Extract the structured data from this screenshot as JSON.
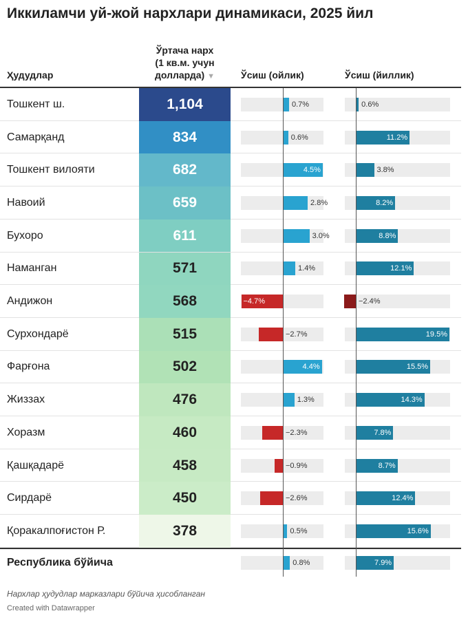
{
  "title": "Иккиламчи уй-жой нархлари динамикаси, 2025 йил",
  "header": {
    "region": "Ҳудудлар",
    "price": [
      "Ўртача нарх",
      "(1 кв.м. учун",
      "долларда)"
    ],
    "sort_icon": "▼",
    "monthly": "Ўсиш (ойлик)",
    "yearly": "Ўсиш (йиллик)"
  },
  "colors": {
    "monthly_pos": "#29a3d0",
    "monthly_neg": "#c62828",
    "yearly_pos": "#1f7fa0",
    "yearly_neg": "#8b1a1a",
    "track": "#ececec"
  },
  "rows": [
    {
      "region": "Тошкент ш.",
      "price": {
        "value": 1104,
        "label": "1,104"
      },
      "color": "#2b4a8c",
      "monthly": {
        "value": 0.7,
        "label": "0.7%"
      },
      "yearly": {
        "value": 0.6,
        "label": "0.6%"
      }
    },
    {
      "region": "Самарқанд",
      "price": 834,
      "color": "#318fc5",
      "monthly": {
        "value": 0.6,
        "label": "0.6%"
      },
      "yearly": {
        "value": 11.2,
        "label": "11.2%"
      }
    },
    {
      "region": "Тошкент вилояти",
      "price": 682,
      "color": "#63b8ca",
      "monthly": {
        "value": 4.5,
        "label": "4.5%"
      },
      "yearly": {
        "value": 3.8,
        "label": "3.8%"
      }
    },
    {
      "region": "Навоий",
      "price": 659,
      "color": "#6cc0c6",
      "monthly": {
        "value": 2.8,
        "label": "2.8%"
      },
      "yearly": {
        "value": 8.2,
        "label": "8.2%"
      }
    },
    {
      "region": "Бухоро",
      "price": 611,
      "color": "#7fcec2",
      "monthly": {
        "value": 3.0,
        "label": "3.0%"
      },
      "yearly": {
        "value": 8.8,
        "label": "8.8%"
      }
    },
    {
      "region": "Наманган",
      "price": 571,
      "color": "#8fd6bf",
      "monthly": {
        "value": 1.4,
        "label": "1.4%"
      },
      "yearly": {
        "value": 12.1,
        "label": "12.1%"
      }
    },
    {
      "region": "Андижон",
      "price": 568,
      "color": "#91d7bf",
      "monthly": {
        "value": -4.7,
        "label": "−4.7%"
      },
      "yearly": {
        "value": -2.4,
        "label": "−2.4%"
      }
    },
    {
      "region": "Сурхондарё",
      "price": 515,
      "color": "#abe0b7",
      "monthly": {
        "value": -2.7,
        "label": "−2.7%"
      },
      "yearly": {
        "value": 19.5,
        "label": "19.5%"
      }
    },
    {
      "region": "Фарғона",
      "price": 502,
      "color": "#b1e2b6",
      "monthly": {
        "value": 4.4,
        "label": "4.4%"
      },
      "yearly": {
        "value": 15.5,
        "label": "15.5%"
      }
    },
    {
      "region": "Жиззах",
      "price": 476,
      "color": "#bfe7be",
      "monthly": {
        "value": 1.3,
        "label": "1.3%"
      },
      "yearly": {
        "value": 14.3,
        "label": "14.3%"
      }
    },
    {
      "region": "Хоразм",
      "price": 460,
      "color": "#c6eac3",
      "monthly": {
        "value": -2.3,
        "label": "−2.3%"
      },
      "yearly": {
        "value": 7.8,
        "label": "7.8%"
      }
    },
    {
      "region": "Қашқадарё",
      "price": 458,
      "color": "#c7eac4",
      "monthly": {
        "value": -0.9,
        "label": "−0.9%"
      },
      "yearly": {
        "value": 8.7,
        "label": "8.7%"
      }
    },
    {
      "region": "Сирдарё",
      "price": 450,
      "color": "#cbecc8",
      "monthly": {
        "value": -2.6,
        "label": "−2.6%"
      },
      "yearly": {
        "value": 12.4,
        "label": "12.4%"
      }
    },
    {
      "region": "Қоракалпоғистон Р.",
      "price": 378,
      "color": "#eef7e8",
      "monthly": {
        "value": 0.5,
        "label": "0.5%"
      },
      "yearly": {
        "value": 15.6,
        "label": "15.6%"
      }
    }
  ],
  "total": {
    "region": "Республика бўйича",
    "monthly": {
      "value": 0.8,
      "label": "0.8%"
    },
    "yearly": {
      "value": 7.9,
      "label": "7.9%"
    }
  },
  "note": "Нархлар ҳудудлар марказлари бўйича ҳисобланган",
  "credit": "Created with Datawrapper"
}
